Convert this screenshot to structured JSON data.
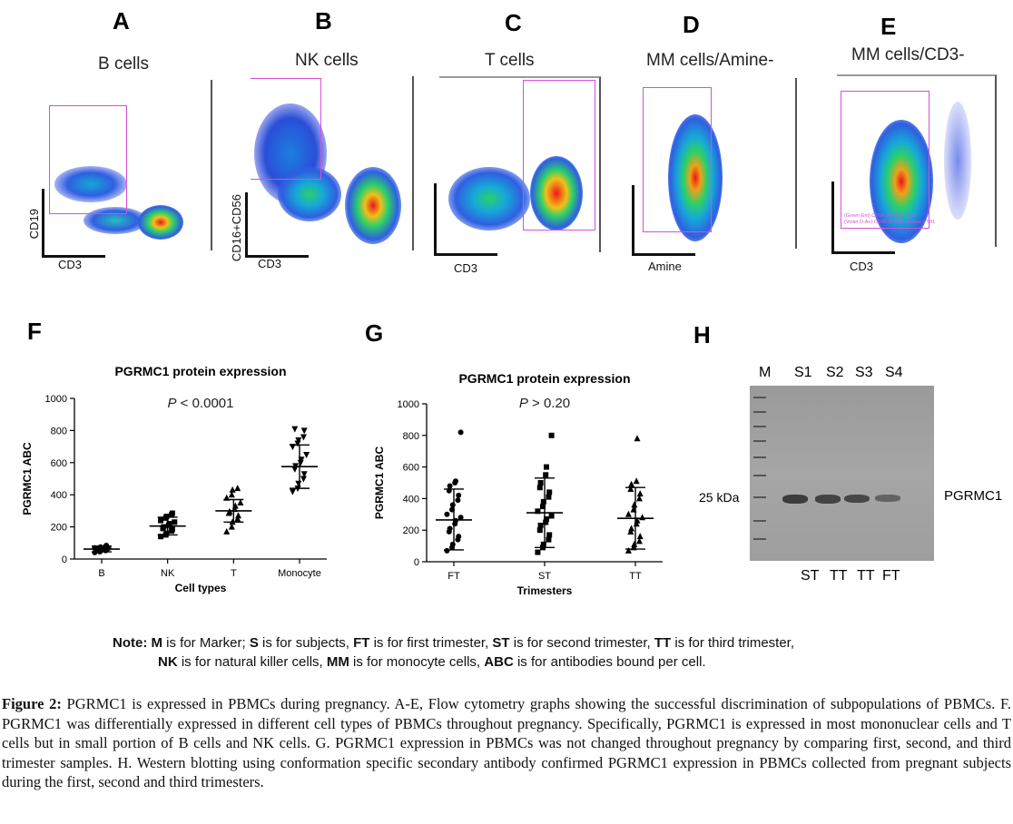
{
  "flow": {
    "A": {
      "letter": "A",
      "title": "B cells",
      "xlabel": "CD3",
      "ylabel": "CD19"
    },
    "B": {
      "letter": "B",
      "title": "NK cells",
      "xlabel": "CD3",
      "ylabel": "CD16+CD56"
    },
    "C": {
      "letter": "C",
      "title": "T cells",
      "xlabel": "CD3"
    },
    "D": {
      "letter": "D",
      "title": "MM cells/Amine-",
      "xlabel": "Amine"
    },
    "E": {
      "letter": "E",
      "title": "MM cells/CD3-",
      "xlabel": "CD3",
      "legend_lines": [
        "(Green Em) CD14 Median = 572",
        "(Violet D-A+) CD45 BV605 Median = 581"
      ]
    }
  },
  "panelF": {
    "letter": "F"
  },
  "panelG": {
    "letter": "G"
  },
  "panelH": {
    "letter": "H"
  },
  "chart_data": [
    {
      "type": "scatter",
      "panel": "F",
      "title": "PGRMC1 protein expression",
      "annotation_p": "P",
      "annotation_rest": " < 0.0001",
      "xlabel": "Cell types",
      "ylabel": "PGRMC1 ABC",
      "categories": [
        "B",
        "NK",
        "T",
        "Monocyte"
      ],
      "ylim": [
        0,
        1000
      ],
      "yticks": [
        0,
        200,
        400,
        600,
        800,
        1000
      ],
      "markers": [
        "circle",
        "square",
        "triangle-up",
        "triangle-down"
      ],
      "mean": [
        62,
        205,
        300,
        575
      ],
      "sd_low": [
        45,
        150,
        230,
        440
      ],
      "sd_high": [
        80,
        260,
        370,
        710
      ],
      "series": [
        {
          "category": "B",
          "values": [
            40,
            45,
            50,
            52,
            55,
            58,
            60,
            62,
            65,
            68,
            70,
            72,
            75,
            80,
            85
          ]
        },
        {
          "category": "NK",
          "values": [
            140,
            150,
            160,
            175,
            185,
            190,
            200,
            210,
            220,
            230,
            240,
            255,
            265,
            275,
            285
          ]
        },
        {
          "category": "T",
          "values": [
            170,
            200,
            230,
            250,
            270,
            285,
            295,
            310,
            330,
            350,
            380,
            400,
            430,
            440
          ]
        },
        {
          "category": "Monocyte",
          "values": [
            420,
            440,
            470,
            500,
            530,
            560,
            580,
            600,
            620,
            650,
            700,
            720,
            740,
            760,
            800,
            810
          ]
        }
      ]
    },
    {
      "type": "scatter",
      "panel": "G",
      "title": "PGRMC1 protein expression",
      "annotation_p": "P",
      "annotation_rest": " > 0.20",
      "xlabel": "Trimesters",
      "ylabel": "PGRMC1 ABC",
      "categories": [
        "FT",
        "ST",
        "TT"
      ],
      "ylim": [
        0,
        1000
      ],
      "yticks": [
        0,
        200,
        400,
        600,
        800,
        1000
      ],
      "markers": [
        "circle",
        "square",
        "triangle-up"
      ],
      "mean": [
        265,
        310,
        275
      ],
      "sd_low": [
        75,
        90,
        80
      ],
      "sd_high": [
        460,
        530,
        470
      ],
      "series": [
        {
          "category": "FT",
          "values": [
            70,
            90,
            110,
            140,
            160,
            190,
            210,
            240,
            260,
            280,
            300,
            330,
            360,
            390,
            420,
            450,
            480,
            500,
            510,
            820
          ]
        },
        {
          "category": "ST",
          "values": [
            60,
            90,
            110,
            140,
            170,
            200,
            230,
            250,
            270,
            290,
            320,
            350,
            380,
            410,
            440,
            470,
            500,
            550,
            600,
            800
          ]
        },
        {
          "category": "TT",
          "values": [
            70,
            90,
            110,
            130,
            160,
            190,
            210,
            240,
            260,
            280,
            300,
            330,
            360,
            400,
            430,
            460,
            490,
            510,
            780
          ]
        }
      ]
    }
  ],
  "western": {
    "lane_labels": [
      "M",
      "S1",
      "S2",
      "S3",
      "S4"
    ],
    "marker_label": "25 kDa",
    "band_label": "PGRMC1",
    "bottom_labels": [
      "ST",
      "TT",
      "TT",
      "FT"
    ],
    "band_intensity": [
      1.0,
      0.9,
      0.85,
      0.45
    ]
  },
  "note": {
    "line1": [
      {
        "t": "Note: ",
        "b": true
      },
      {
        "t": "M",
        "b": true
      },
      {
        "t": " is for Marker; ",
        "b": false
      },
      {
        "t": "S",
        "b": true
      },
      {
        "t": " is for subjects, ",
        "b": false
      },
      {
        "t": "FT",
        "b": true
      },
      {
        "t": " is for first trimester, ",
        "b": false
      },
      {
        "t": "ST",
        "b": true
      },
      {
        "t": " is for second trimester, ",
        "b": false
      },
      {
        "t": "TT",
        "b": true
      },
      {
        "t": " is for third trimester,",
        "b": false
      }
    ],
    "line2": [
      {
        "t": "NK",
        "b": true
      },
      {
        "t": " is for natural killer cells, ",
        "b": false
      },
      {
        "t": "MM",
        "b": true
      },
      {
        "t": " is for monocyte cells, ",
        "b": false
      },
      {
        "t": "ABC",
        "b": true
      },
      {
        "t": " is for antibodies bound per cell.",
        "b": false
      }
    ]
  },
  "caption": {
    "label": "Figure 2:",
    "text": " PGRMC1 is expressed in PBMCs during pregnancy. A-E, Flow cytometry graphs showing the successful discrimination of subpopulations of PBMCs. F. PGRMC1 was differentially expressed in different cell types of PBMCs throughout pregnancy. Specifically, PGRMC1 is expressed in most mononuclear cells and T cells but in small portion of B cells and NK cells. G. PGRMC1 expression in PBMCs was not changed throughout pregnancy by comparing first, second, and third trimester samples. H. Western blotting using conformation specific secondary antibody confirmed PGRMC1 expression in PBMCs collected from pregnant subjects during the first, second and third trimesters."
  }
}
